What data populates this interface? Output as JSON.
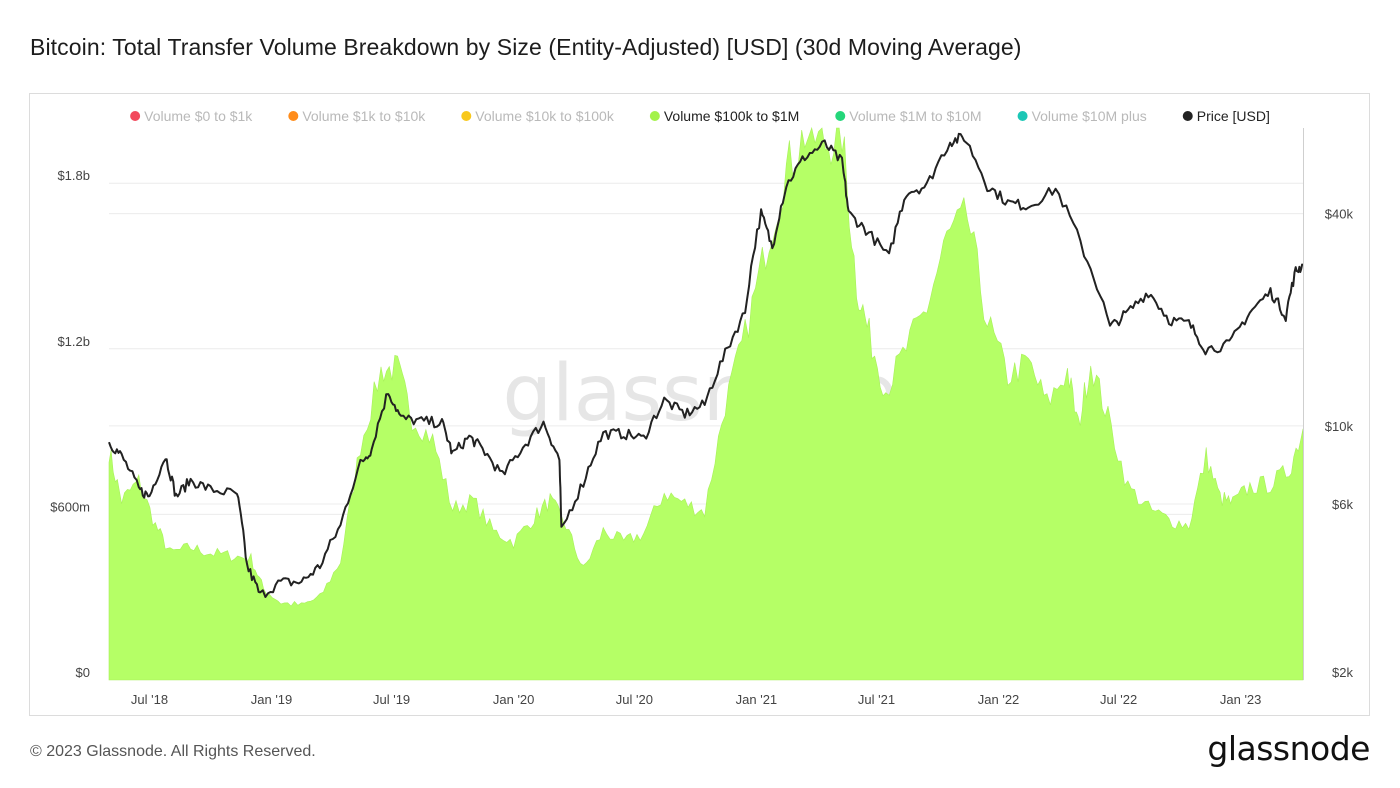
{
  "page": {
    "title": "Bitcoin: Total Transfer Volume Breakdown by Size (Entity-Adjusted) [USD] (30d Moving Average)",
    "footer": "© 2023 Glassnode. All Rights Reserved.",
    "brand": "glassnode",
    "watermark": "glassnode"
  },
  "chart_data": {
    "type": "area",
    "title": "Bitcoin: Total Transfer Volume Breakdown by Size (Entity-Adjusted) [USD] (30d Moving Average)",
    "x_range": [
      "2018-05-01",
      "2023-04-05"
    ],
    "x_ticks": [
      {
        "date": "2018-07-01",
        "label": "Jul '18"
      },
      {
        "date": "2019-01-01",
        "label": "Jan '19"
      },
      {
        "date": "2019-07-01",
        "label": "Jul '19"
      },
      {
        "date": "2020-01-01",
        "label": "Jan '20"
      },
      {
        "date": "2020-07-01",
        "label": "Jul '20"
      },
      {
        "date": "2021-01-01",
        "label": "Jan '21"
      },
      {
        "date": "2021-07-01",
        "label": "Jul '21"
      },
      {
        "date": "2022-01-01",
        "label": "Jan '22"
      },
      {
        "date": "2022-07-01",
        "label": "Jul '22"
      },
      {
        "date": "2023-01-01",
        "label": "Jan '23"
      }
    ],
    "y_left": {
      "scale": "linear",
      "range": [
        0,
        2000000000
      ],
      "ticks": [
        {
          "value": 0,
          "label": "$0"
        },
        {
          "value": 600000000,
          "label": "$600m"
        },
        {
          "value": 1200000000,
          "label": "$1.2b"
        },
        {
          "value": 1800000000,
          "label": "$1.8b"
        }
      ]
    },
    "y_right": {
      "scale": "log",
      "range": [
        1900,
        70000
      ],
      "ticks": [
        {
          "value": 2000,
          "label": "$2k"
        },
        {
          "value": 6000,
          "label": "$6k"
        },
        {
          "value": 10000,
          "label": "$10k"
        },
        {
          "value": 40000,
          "label": "$40k"
        }
      ]
    },
    "legend": [
      {
        "name": "Volume $0 to $1k",
        "color": "#f2495c",
        "active": false
      },
      {
        "name": "Volume $1k to $10k",
        "color": "#ff8c1a",
        "active": false
      },
      {
        "name": "Volume $10k to $100k",
        "color": "#f8c81c",
        "active": false
      },
      {
        "name": "Volume $100k to $1M",
        "color": "#a3f24a",
        "active": true
      },
      {
        "name": "Volume $1M to $10M",
        "color": "#24d67a",
        "active": false
      },
      {
        "name": "Volume $10M plus",
        "color": "#1cc7b6",
        "active": false
      },
      {
        "name": "Price [USD]",
        "color": "#222222",
        "active": true
      }
    ],
    "series": [
      {
        "name": "Volume $100k to $1M",
        "axis": "left",
        "color": "#b5ff66",
        "points": [
          [
            "2018-05-01",
            830000000
          ],
          [
            "2018-05-20",
            650000000
          ],
          [
            "2018-06-15",
            720000000
          ],
          [
            "2018-07-10",
            560000000
          ],
          [
            "2018-08-01",
            460000000
          ],
          [
            "2018-09-01",
            480000000
          ],
          [
            "2018-10-01",
            460000000
          ],
          [
            "2018-11-01",
            450000000
          ],
          [
            "2018-12-01",
            440000000
          ],
          [
            "2018-12-20",
            330000000
          ],
          [
            "2019-01-15",
            280000000
          ],
          [
            "2019-02-15",
            270000000
          ],
          [
            "2019-03-15",
            300000000
          ],
          [
            "2019-04-15",
            430000000
          ],
          [
            "2019-05-15",
            850000000
          ],
          [
            "2019-06-15",
            1120000000
          ],
          [
            "2019-07-10",
            1130000000
          ],
          [
            "2019-08-01",
            950000000
          ],
          [
            "2019-09-01",
            870000000
          ],
          [
            "2019-10-01",
            620000000
          ],
          [
            "2019-11-01",
            650000000
          ],
          [
            "2019-12-01",
            540000000
          ],
          [
            "2020-01-01",
            500000000
          ],
          [
            "2020-02-01",
            590000000
          ],
          [
            "2020-02-25",
            650000000
          ],
          [
            "2020-03-20",
            560000000
          ],
          [
            "2020-04-15",
            400000000
          ],
          [
            "2020-05-15",
            540000000
          ],
          [
            "2020-06-15",
            500000000
          ],
          [
            "2020-07-15",
            530000000
          ],
          [
            "2020-08-15",
            680000000
          ],
          [
            "2020-09-15",
            640000000
          ],
          [
            "2020-10-15",
            610000000
          ],
          [
            "2020-11-15",
            1000000000
          ],
          [
            "2020-12-15",
            1250000000
          ],
          [
            "2021-01-15",
            1560000000
          ],
          [
            "2021-02-15",
            1850000000
          ],
          [
            "2021-03-15",
            1980000000
          ],
          [
            "2021-04-15",
            1940000000
          ],
          [
            "2021-05-10",
            1980000000
          ],
          [
            "2021-06-01",
            1430000000
          ],
          [
            "2021-06-20",
            1250000000
          ],
          [
            "2021-07-15",
            1050000000
          ],
          [
            "2021-08-15",
            1200000000
          ],
          [
            "2021-09-15",
            1350000000
          ],
          [
            "2021-10-15",
            1600000000
          ],
          [
            "2021-11-15",
            1680000000
          ],
          [
            "2021-12-15",
            1300000000
          ],
          [
            "2022-01-15",
            1100000000
          ],
          [
            "2022-02-15",
            1150000000
          ],
          [
            "2022-03-15",
            1000000000
          ],
          [
            "2022-04-15",
            1120000000
          ],
          [
            "2022-05-01",
            920000000
          ],
          [
            "2022-05-20",
            1150000000
          ],
          [
            "2022-06-15",
            950000000
          ],
          [
            "2022-07-15",
            700000000
          ],
          [
            "2022-08-15",
            620000000
          ],
          [
            "2022-09-15",
            580000000
          ],
          [
            "2022-10-15",
            560000000
          ],
          [
            "2022-11-10",
            810000000
          ],
          [
            "2022-12-01",
            660000000
          ],
          [
            "2022-12-20",
            640000000
          ],
          [
            "2023-01-15",
            700000000
          ],
          [
            "2023-02-15",
            710000000
          ],
          [
            "2023-03-15",
            760000000
          ],
          [
            "2023-04-05",
            910000000
          ]
        ]
      },
      {
        "name": "Price [USD]",
        "axis": "right",
        "color": "#222222",
        "points": [
          [
            "2018-05-01",
            9000
          ],
          [
            "2018-05-20",
            8200
          ],
          [
            "2018-06-15",
            6600
          ],
          [
            "2018-07-01",
            6300
          ],
          [
            "2018-07-25",
            8200
          ],
          [
            "2018-08-10",
            6300
          ],
          [
            "2018-09-01",
            7000
          ],
          [
            "2018-10-01",
            6600
          ],
          [
            "2018-11-10",
            6400
          ],
          [
            "2018-11-25",
            4000
          ],
          [
            "2018-12-15",
            3300
          ],
          [
            "2019-01-15",
            3600
          ],
          [
            "2019-02-15",
            3600
          ],
          [
            "2019-03-15",
            4000
          ],
          [
            "2019-04-15",
            5200
          ],
          [
            "2019-05-15",
            7800
          ],
          [
            "2019-06-01",
            8600
          ],
          [
            "2019-06-26",
            12500
          ],
          [
            "2019-07-15",
            10500
          ],
          [
            "2019-08-15",
            10300
          ],
          [
            "2019-09-15",
            10200
          ],
          [
            "2019-10-01",
            8300
          ],
          [
            "2019-10-26",
            9300
          ],
          [
            "2019-11-15",
            8600
          ],
          [
            "2019-12-15",
            7200
          ],
          [
            "2020-01-15",
            8700
          ],
          [
            "2020-02-15",
            10200
          ],
          [
            "2020-03-10",
            8000
          ],
          [
            "2020-03-13",
            5000
          ],
          [
            "2020-04-15",
            6900
          ],
          [
            "2020-05-15",
            9500
          ],
          [
            "2020-06-15",
            9500
          ],
          [
            "2020-07-15",
            9200
          ],
          [
            "2020-08-15",
            11800
          ],
          [
            "2020-09-15",
            10800
          ],
          [
            "2020-10-15",
            11500
          ],
          [
            "2020-11-15",
            16000
          ],
          [
            "2020-12-15",
            21000
          ],
          [
            "2021-01-08",
            40000
          ],
          [
            "2021-01-25",
            32000
          ],
          [
            "2021-02-15",
            48000
          ],
          [
            "2021-03-15",
            58000
          ],
          [
            "2021-04-14",
            63000
          ],
          [
            "2021-05-10",
            56000
          ],
          [
            "2021-05-20",
            40000
          ],
          [
            "2021-06-15",
            36000
          ],
          [
            "2021-07-20",
            30000
          ],
          [
            "2021-08-15",
            46000
          ],
          [
            "2021-09-15",
            48000
          ],
          [
            "2021-10-20",
            64000
          ],
          [
            "2021-11-10",
            66000
          ],
          [
            "2021-12-15",
            48000
          ],
          [
            "2022-01-15",
            43000
          ],
          [
            "2022-02-15",
            42000
          ],
          [
            "2022-03-28",
            47000
          ],
          [
            "2022-05-10",
            31000
          ],
          [
            "2022-06-18",
            19000
          ],
          [
            "2022-07-15",
            21000
          ],
          [
            "2022-08-15",
            24000
          ],
          [
            "2022-09-15",
            20000
          ],
          [
            "2022-10-15",
            19500
          ],
          [
            "2022-11-09",
            16500
          ],
          [
            "2022-12-15",
            17000
          ],
          [
            "2023-01-15",
            21000
          ],
          [
            "2023-02-15",
            24000
          ],
          [
            "2023-03-10",
            20500
          ],
          [
            "2023-03-25",
            27500
          ],
          [
            "2023-04-05",
            28500
          ]
        ]
      }
    ]
  }
}
